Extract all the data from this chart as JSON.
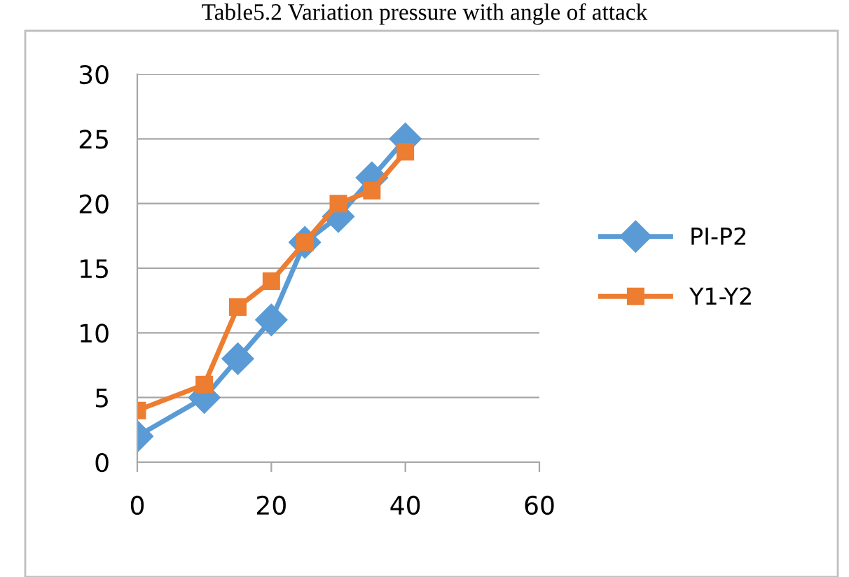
{
  "chart_data": {
    "type": "line",
    "title": "Table5.2 Variation pressure with angle of attack",
    "x": [
      0,
      10,
      15,
      20,
      25,
      30,
      35,
      40
    ],
    "series": [
      {
        "name": "PI-P2",
        "color": "#5b9bd5",
        "marker": "diamond",
        "values": [
          2,
          5,
          8,
          11,
          17,
          19,
          22,
          25
        ]
      },
      {
        "name": "Y1-Y2",
        "color": "#ed7d31",
        "marker": "square",
        "values": [
          4,
          6,
          12,
          14,
          17,
          20,
          21,
          24
        ]
      }
    ],
    "xlim": [
      0,
      60
    ],
    "xticks": [
      0,
      20,
      40,
      60
    ],
    "ylim": [
      0,
      30
    ],
    "yticks": [
      0,
      5,
      10,
      15,
      20,
      25,
      30
    ],
    "grid": "y",
    "legend": "right"
  }
}
